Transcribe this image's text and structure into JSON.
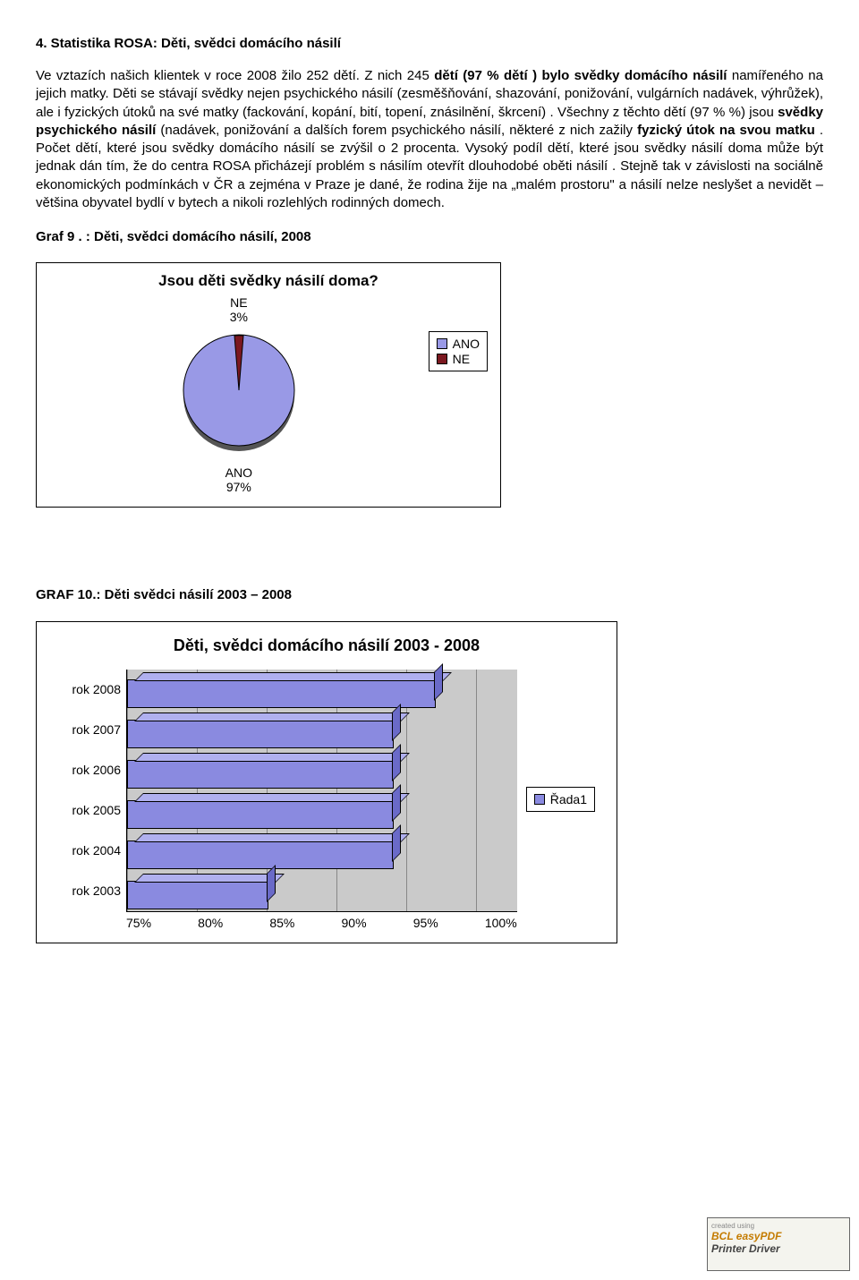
{
  "heading": "4. Statistika ROSA: Děti, svědci domácího násilí",
  "para1_pre": "Ve  vztazích našich klientek v roce 2008 žilo 252 dětí. Z nich 245  ",
  "para1_b1": "dětí (97 % dětí ) bylo svědky domácího násilí",
  "para1_mid1": " namířeného na  jejich matky. Děti se stávají svědky nejen psychického násilí  (zesměšňování, shazování, ponižování, vulgárních nadávek, výhrůžek), ale i fyzických útoků na své matky  (fackování, kopání, bití, topení, znásilnění, škrcení) . Všechny z těchto dětí (97 % %) jsou ",
  "para1_b2": "svědky psychického násilí",
  "para1_mid2": " (nadávek,  ponižování a dalších forem psychického násilí,   některé z nich zažily ",
  "para1_b3": "fyzický útok na svou matku",
  "para1_post": " . Počet dětí, které jsou svědky domácího násilí se zvýšil o 2 procenta. Vysoký podíl dětí, které jsou svědky násilí doma může být jednak dán tím, že do centra ROSA přicházejí problém s násilím otevřít dlouhodobé oběti násilí . Stejně tak v závislosti na  sociálně ekonomických podmínkách v ČR a zejména v Praze je dané, že rodina žije na „malém prostoru\" a násilí nelze neslyšet a nevidět – většina obyvatel bydlí v bytech a nikoli rozlehlých rodinných domech.",
  "graf9_label": "Graf 9 . : Děti, svědci domácího násilí, 2008",
  "pie": {
    "title": "Jsou děti svědky násilí doma?",
    "label_ne": "NE",
    "pct_ne": "3%",
    "label_ano": "ANO",
    "pct_ano": "97%",
    "color_ano": "#9999e6",
    "color_ne": "#7b1820",
    "legend_ano": "ANO",
    "legend_ne": "NE"
  },
  "graf10_label": "GRAF 10.: Děti svědci násilí 2003 – 2008",
  "bars": {
    "title": "Děti, svědci domácího násilí 2003 - 2008",
    "xmin": 75,
    "xmax": 100,
    "xticks": [
      "75%",
      "80%",
      "85%",
      "90%",
      "95%",
      "100%"
    ],
    "face_color": "#8a8ae0",
    "top_color": "#b0b0ef",
    "side_color": "#6a6ac8",
    "grid_bg": "#cacaca",
    "legend": "Řada1",
    "rows": [
      {
        "label": "rok 2008",
        "value": 97
      },
      {
        "label": "rok 2007",
        "value": 94
      },
      {
        "label": "rok 2006",
        "value": 94
      },
      {
        "label": "rok 2005",
        "value": 94
      },
      {
        "label": "rok 2004",
        "value": 94
      },
      {
        "label": "rok 2003",
        "value": 85
      }
    ]
  },
  "watermark": {
    "line1": "created using",
    "line2": "BCL easyPDF",
    "line3": "Printer Driver"
  }
}
